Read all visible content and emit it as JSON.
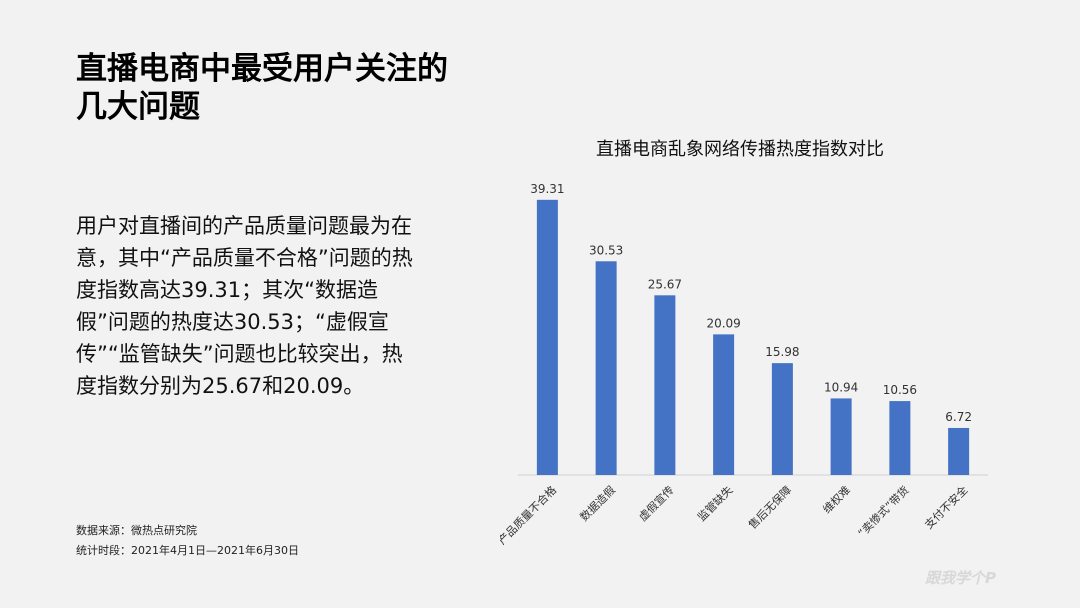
{
  "page": {
    "title": "直播电商中最受用户关注的几大问题",
    "body": "用户对直播间的产品质量问题最为在意，其中“产品质量不合格”问题的热度指数高达39.31；其次“数据造假”问题的热度达30.53；“虚假宣传”“监管缺失”问题也比较突出，热度指数分别为25.67和20.09。",
    "source_line": "数据来源：微热点研究院",
    "period_line": "统计时段：2021年4月1日—2021年6月30日",
    "watermark": "跟我学个P"
  },
  "colors": {
    "bar": "#4472c4",
    "background": "#f2f2f2",
    "axis": "#d0d0d0"
  },
  "chart_data": {
    "type": "bar",
    "title": "直播电商乱象网络传播热度指数对比",
    "xlabel": "",
    "ylabel": "",
    "categories": [
      "产品质量不合格",
      "数据造假",
      "虚假宣传",
      "监管缺失",
      "售后无保障",
      "维权难",
      "“卖惨式”带货",
      "支付不安全"
    ],
    "values": [
      39.31,
      30.53,
      25.67,
      20.09,
      15.98,
      10.94,
      10.56,
      6.72
    ],
    "ylim": [
      0,
      40
    ],
    "grid": false,
    "data_labels": true
  }
}
